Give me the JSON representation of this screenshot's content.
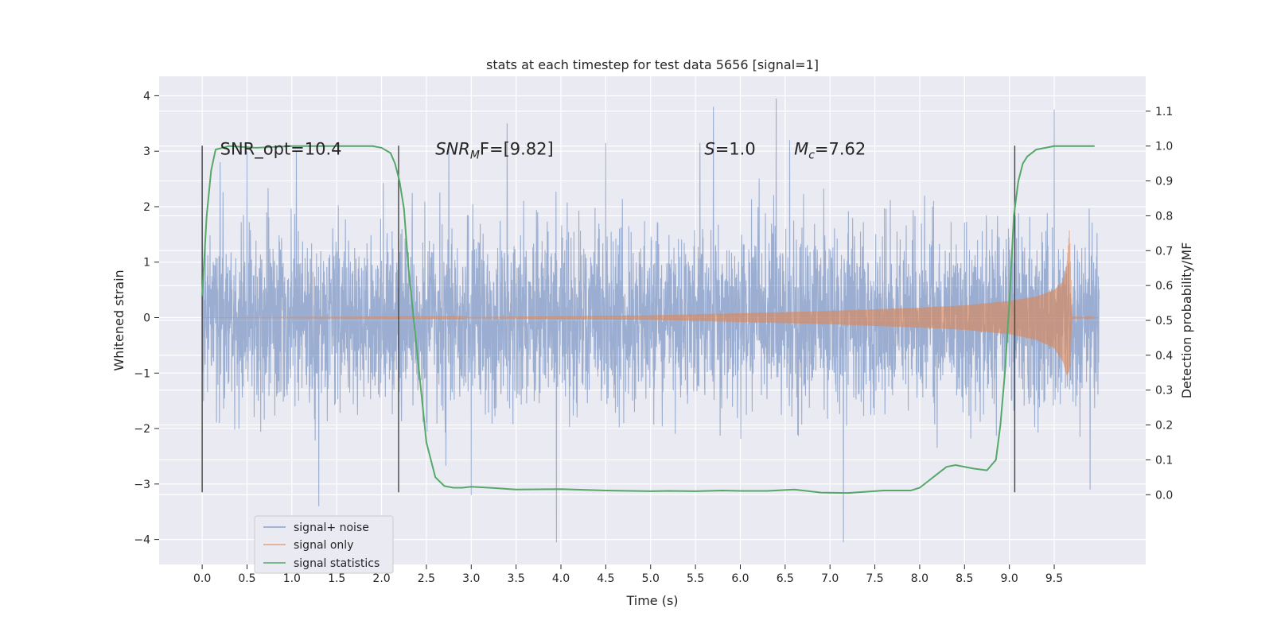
{
  "chart_data": {
    "type": "line",
    "title": "stats at each timestep for test data 5656 [signal=1]",
    "xlabel": "Time (s)",
    "ylabel": "Whitened strain",
    "y2label": "Detection probability/MF",
    "xlim": [
      -0.48,
      10.52
    ],
    "ylim": [
      -4.45,
      4.35
    ],
    "y2lim": [
      -0.2,
      1.2
    ],
    "x_ticks": [
      0.0,
      0.5,
      1.0,
      1.5,
      2.0,
      2.5,
      3.0,
      3.5,
      4.0,
      4.5,
      5.0,
      5.5,
      6.0,
      6.5,
      7.0,
      7.5,
      8.0,
      8.5,
      9.0,
      9.5
    ],
    "x_tick_labels": [
      "0.0",
      "0.5",
      "1.0",
      "1.5",
      "2.0",
      "2.5",
      "3.0",
      "3.5",
      "4.0",
      "4.5",
      "5.0",
      "5.5",
      "6.0",
      "6.5",
      "7.0",
      "7.5",
      "8.0",
      "8.5",
      "9.0",
      "9.5"
    ],
    "y_ticks": [
      -4,
      -3,
      -2,
      -1,
      0,
      1,
      2,
      3,
      4
    ],
    "y_tick_labels": [
      "−4",
      "−3",
      "−2",
      "−1",
      "0",
      "1",
      "2",
      "3",
      "4"
    ],
    "y2_ticks": [
      0.0,
      0.1,
      0.2,
      0.3,
      0.4,
      0.5,
      0.6,
      0.7,
      0.8,
      0.9,
      1.0,
      1.1
    ],
    "y2_tick_labels": [
      "0.0",
      "0.1",
      "0.2",
      "0.3",
      "0.4",
      "0.5",
      "0.6",
      "0.7",
      "0.8",
      "0.9",
      "1.0",
      "1.1"
    ],
    "grid": true,
    "legend_position": "lower-left",
    "colors": {
      "background": "#eaeaf2",
      "grid": "#ffffff",
      "noise": "#4c72b0",
      "signal": "#dd8452",
      "stats": "#55a868",
      "vline": "#444444"
    },
    "series": [
      {
        "name": "signal+ noise",
        "kind": "noise_envelope",
        "x_range": [
          0.0,
          10.0
        ],
        "sample_rate_hz": 400,
        "typical_amplitude": 1.2,
        "x_peak": [
          0.0,
          0.2,
          0.5,
          1.05,
          1.3,
          2.75,
          3.0,
          3.4,
          3.95,
          4.5,
          5.55,
          5.7,
          6.4,
          6.55,
          7.15,
          9.5,
          9.9
        ],
        "y_peak": [
          3.1,
          2.8,
          3.0,
          3.0,
          -3.4,
          3.15,
          -3.2,
          3.5,
          -4.05,
          3.15,
          3.15,
          3.8,
          3.95,
          3.2,
          -4.05,
          3.75,
          -3.1
        ]
      },
      {
        "name": "signal only",
        "kind": "chirp_envelope",
        "x": [
          0.0,
          3.0,
          5.0,
          6.0,
          7.0,
          8.0,
          8.5,
          9.0,
          9.3,
          9.5,
          9.6,
          9.64,
          9.67,
          9.7,
          10.0
        ],
        "upper": [
          0.0,
          0.01,
          0.04,
          0.08,
          0.12,
          0.18,
          0.22,
          0.3,
          0.38,
          0.5,
          0.65,
          0.95,
          1.6,
          0.02,
          0.0
        ],
        "lower": [
          0.0,
          -0.01,
          -0.04,
          -0.08,
          -0.12,
          -0.18,
          -0.22,
          -0.3,
          -0.4,
          -0.55,
          -0.8,
          -1.05,
          -0.95,
          -0.02,
          0.0
        ]
      },
      {
        "name": "signal statistics",
        "axis": "right",
        "x": [
          0.0,
          0.05,
          0.1,
          0.15,
          0.3,
          0.6,
          1.0,
          1.5,
          1.9,
          2.0,
          2.1,
          2.15,
          2.2,
          2.25,
          2.3,
          2.4,
          2.5,
          2.6,
          2.7,
          2.8,
          2.9,
          3.0,
          3.2,
          3.5,
          4.0,
          4.5,
          5.0,
          5.2,
          5.5,
          5.8,
          6.0,
          6.3,
          6.6,
          6.9,
          7.2,
          7.6,
          7.9,
          8.0,
          8.1,
          8.2,
          8.3,
          8.4,
          8.6,
          8.75,
          8.85,
          8.9,
          8.95,
          9.0,
          9.05,
          9.1,
          9.15,
          9.2,
          9.3,
          9.5,
          9.7,
          9.95
        ],
        "y": [
          0.57,
          0.8,
          0.93,
          0.99,
          1.0,
          0.995,
          1.0,
          1.0,
          1.0,
          0.995,
          0.98,
          0.95,
          0.9,
          0.82,
          0.65,
          0.4,
          0.15,
          0.05,
          0.025,
          0.02,
          0.02,
          0.023,
          0.02,
          0.015,
          0.016,
          0.012,
          0.01,
          0.011,
          0.01,
          0.012,
          0.011,
          0.011,
          0.015,
          0.006,
          0.005,
          0.012,
          0.012,
          0.02,
          0.04,
          0.06,
          0.08,
          0.085,
          0.075,
          0.07,
          0.1,
          0.2,
          0.35,
          0.55,
          0.8,
          0.9,
          0.95,
          0.97,
          0.99,
          1.0,
          1.0,
          1.0
        ]
      }
    ],
    "vertical_lines": [
      {
        "x": 0.0,
        "y_range": [
          -3.15,
          3.1
        ]
      },
      {
        "x": 2.19,
        "y_range": [
          -3.15,
          3.1
        ]
      },
      {
        "x": 9.06,
        "y_range": [
          -3.15,
          3.1
        ]
      }
    ],
    "annotations": [
      {
        "id": "snr-opt",
        "x": 0.2,
        "y": 3.15,
        "text": "SNR_opt=10.4"
      },
      {
        "id": "snr-mf",
        "x": 2.6,
        "y": 3.15,
        "base": "SNR",
        "sub": "M",
        "tail": "F=[9.82]"
      },
      {
        "id": "s-value",
        "x": 5.6,
        "y": 3.15,
        "base": "S",
        "tail": "=1.0"
      },
      {
        "id": "chirp-mass",
        "x": 6.6,
        "y": 3.15,
        "base": "M",
        "sub": "c",
        "tail": "=7.62"
      }
    ]
  }
}
